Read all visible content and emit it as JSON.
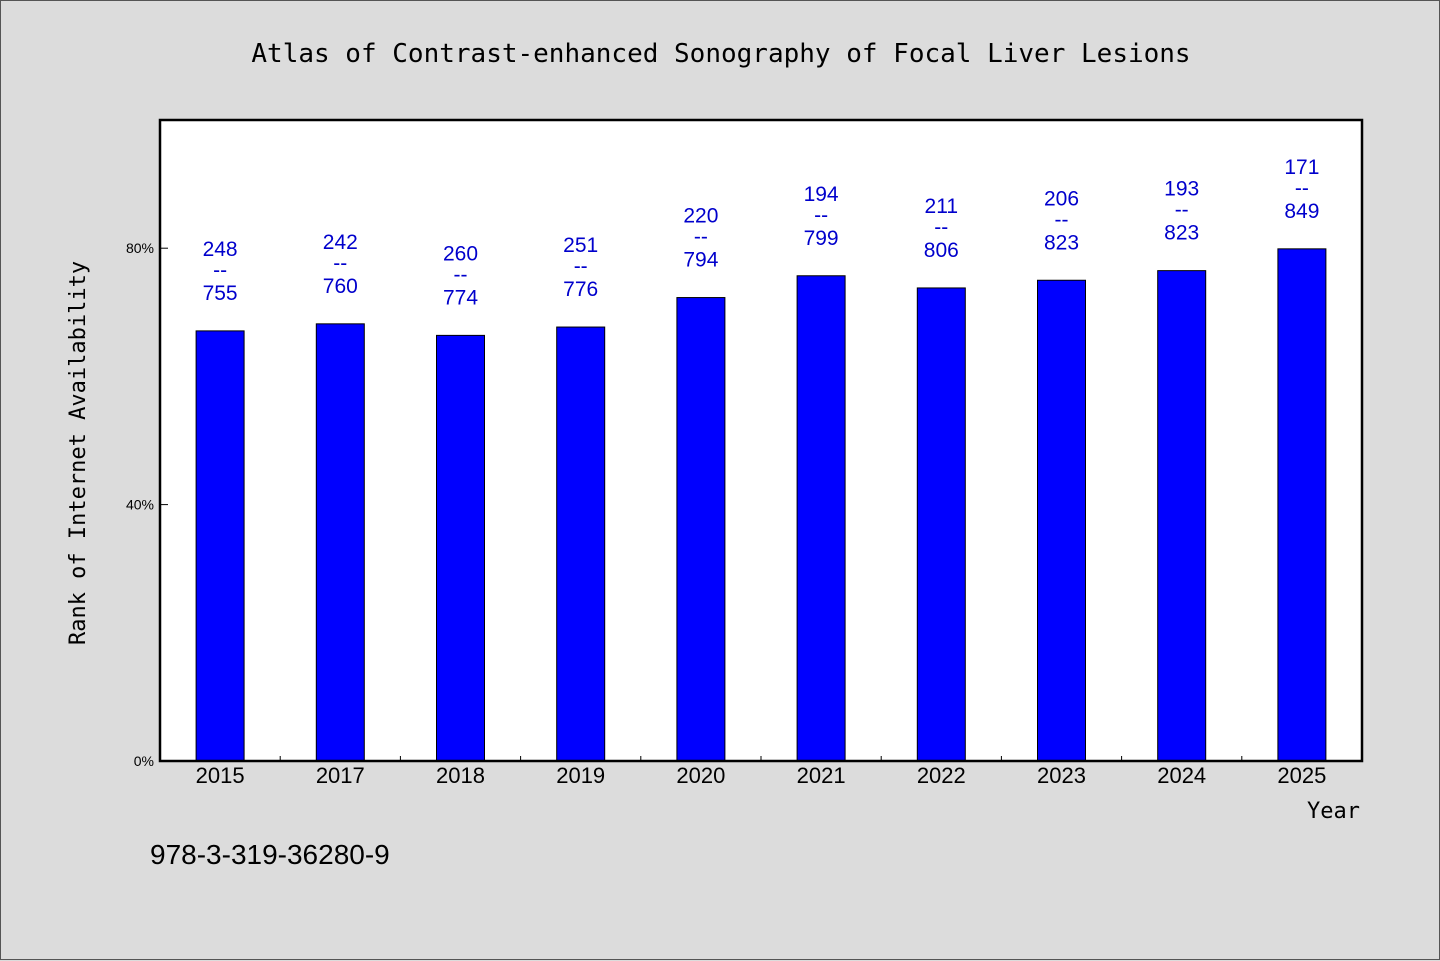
{
  "chart_data": {
    "type": "bar",
    "title": "Atlas of Contrast-enhanced Sonography of Focal Liver Lesions",
    "xlabel": "Year",
    "ylabel": "Rank of Internet Availability",
    "categories": [
      "2015",
      "2017",
      "2018",
      "2019",
      "2020",
      "2021",
      "2022",
      "2023",
      "2024",
      "2025"
    ],
    "values": [
      67.1,
      68.2,
      66.4,
      67.7,
      72.3,
      75.7,
      73.8,
      75.0,
      76.5,
      79.9
    ],
    "value_unit": "%",
    "bar_labels": [
      {
        "rank": "248",
        "sep": "--",
        "total": "755"
      },
      {
        "rank": "242",
        "sep": "--",
        "total": "760"
      },
      {
        "rank": "260",
        "sep": "--",
        "total": "774"
      },
      {
        "rank": "251",
        "sep": "--",
        "total": "776"
      },
      {
        "rank": "220",
        "sep": "--",
        "total": "794"
      },
      {
        "rank": "194",
        "sep": "--",
        "total": "799"
      },
      {
        "rank": "211",
        "sep": "--",
        "total": "806"
      },
      {
        "rank": "206",
        "sep": "--",
        "total": "823"
      },
      {
        "rank": "193",
        "sep": "--",
        "total": "823"
      },
      {
        "rank": "171",
        "sep": "--",
        "total": "849"
      }
    ],
    "yticks": [
      {
        "value": 0,
        "label": "0%"
      },
      {
        "value": 40,
        "label": "40%"
      },
      {
        "value": 80,
        "label": "80%"
      }
    ],
    "ylim": [
      0,
      100
    ],
    "grid": false,
    "bar_color": "#0000ff",
    "label_color": "#0000cc",
    "plot_background": "#ffffff",
    "page_background": "#dcdcdc"
  },
  "footer": {
    "isbn": "978-3-319-36280-9"
  }
}
